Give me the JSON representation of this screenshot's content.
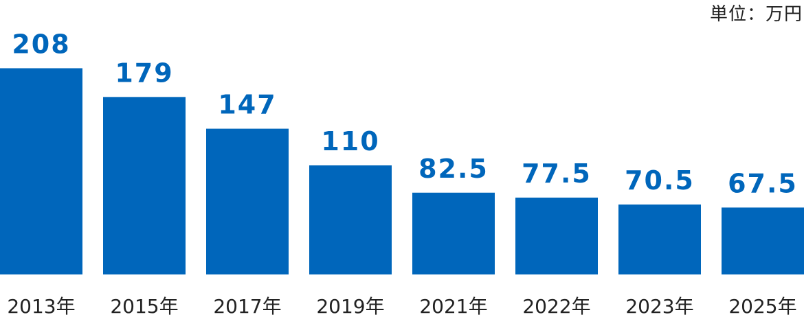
{
  "unit_label": "単位：万円",
  "colors": {
    "bar": "#0066BB",
    "value_label": "#0066BB",
    "category_label": "#222222"
  },
  "chart_data": {
    "type": "bar",
    "title": "",
    "xlabel": "",
    "ylabel": "",
    "unit": "単位：万円",
    "categories": [
      "2013年",
      "2015年",
      "2017年",
      "2019年",
      "2021年",
      "2022年",
      "2023年",
      "2025年"
    ],
    "values": [
      208,
      179,
      147,
      110,
      82.5,
      77.5,
      70.5,
      67.5
    ],
    "value_labels": [
      "208",
      "179",
      "147",
      "110",
      "82.5",
      "77.5",
      "70.5",
      "67.5"
    ],
    "grid": false,
    "legend": "none"
  }
}
